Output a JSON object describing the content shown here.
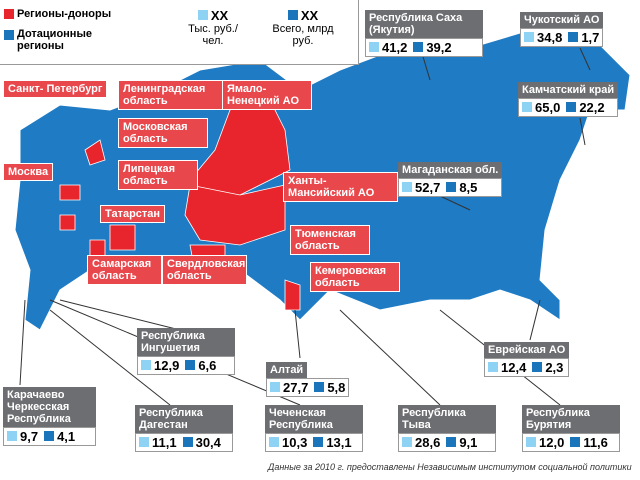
{
  "legend": {
    "donors": "Регионы-доноры",
    "subsidized": "Дотационные регионы",
    "key1": {
      "value": "ХХ",
      "label": "Тыс. руб./ чел."
    },
    "key2": {
      "value": "ХХ",
      "label": "Всего, млрд руб."
    }
  },
  "donor_regions": [
    "Санкт- Петербург",
    "Ленинградская область",
    "Ямало-Ненецкий АО",
    "Московская область",
    "Москва",
    "Липецкая область",
    "Ханты-Мансийский АО",
    "Татарстан",
    "Тюменская область",
    "Самарская область",
    "Свердловская область",
    "Кемеровская область"
  ],
  "callouts": [
    {
      "name": "Республика Саха (Якутия)",
      "per_capita": "41,2",
      "total": "39,2"
    },
    {
      "name": "Чукотский АО",
      "per_capita": "34,8",
      "total": "1,7"
    },
    {
      "name": "Камчатский край",
      "per_capita": "65,0",
      "total": "22,2"
    },
    {
      "name": "Магаданская обл.",
      "per_capita": "52,7",
      "total": "8,5"
    },
    {
      "name": "Республика Ингушетия",
      "per_capita": "12,9",
      "total": "6,6"
    },
    {
      "name": "Алтай",
      "per_capita": "27,7",
      "total": "5,8"
    },
    {
      "name": "Еврейская АО",
      "per_capita": "12,4",
      "total": "2,3"
    },
    {
      "name": "Карачаево Черкесская Республика",
      "per_capita": "9,7",
      "total": "4,1"
    },
    {
      "name": "Республика Дагестан",
      "per_capita": "11,1",
      "total": "30,4"
    },
    {
      "name": "Чеченская Республика",
      "per_capita": "10,3",
      "total": "13,1"
    },
    {
      "name": "Республика Тыва",
      "per_capita": "28,6",
      "total": "9,1"
    },
    {
      "name": "Республика Бурятия",
      "per_capita": "12,0",
      "total": "11,6"
    }
  ],
  "footer": "Данные за 2010 г. предоставлены Независимым институтом социальной политики"
}
